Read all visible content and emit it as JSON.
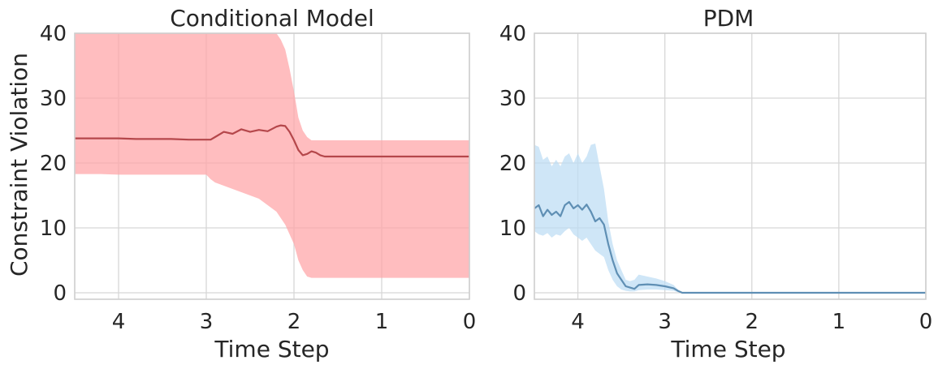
{
  "chart_data": [
    {
      "type": "line",
      "title": "Conditional Model",
      "xlabel": "Time Step",
      "ylabel": "Constraint Violation",
      "xlim": [
        4.5,
        0
      ],
      "ylim": [
        -1,
        40
      ],
      "xticks": [
        4,
        3,
        2,
        1,
        0
      ],
      "yticks": [
        0,
        10,
        20,
        30,
        40
      ],
      "grid": true,
      "line_color": "#b5474b",
      "band_color": "#ffa3a6",
      "series": [
        {
          "x": [
            4.5,
            4.2,
            4.0,
            3.8,
            3.6,
            3.4,
            3.2,
            3.0,
            2.95,
            2.9,
            2.8,
            2.7,
            2.6,
            2.5,
            2.4,
            2.3,
            2.2,
            2.15,
            2.1,
            2.05,
            2.0,
            1.95,
            1.9,
            1.85,
            1.8,
            1.75,
            1.7,
            1.65,
            1.6,
            1.5,
            1.2,
            1.0,
            0.8,
            0.5,
            0.2,
            0.0
          ],
          "y": [
            23.8,
            23.8,
            23.8,
            23.7,
            23.7,
            23.7,
            23.6,
            23.6,
            23.6,
            24.0,
            24.8,
            24.5,
            25.2,
            24.8,
            25.1,
            24.9,
            25.6,
            25.8,
            25.7,
            24.8,
            23.5,
            22.0,
            21.2,
            21.4,
            21.8,
            21.6,
            21.2,
            21.0,
            21.0,
            21.0,
            21.0,
            21.0,
            21.0,
            21.0,
            21.0,
            21.0
          ],
          "lower": [
            18.3,
            18.3,
            18.2,
            18.2,
            18.2,
            18.2,
            18.2,
            18.2,
            17.5,
            17.0,
            16.5,
            16.0,
            15.5,
            15.0,
            14.5,
            13.5,
            12.5,
            11.5,
            10.5,
            9.0,
            7.5,
            5.0,
            3.5,
            2.5,
            2.3,
            2.3,
            2.3,
            2.3,
            2.3,
            2.3,
            2.3,
            2.3,
            2.3,
            2.3,
            2.3,
            2.3
          ],
          "upper": [
            40,
            40,
            40,
            40,
            40,
            40,
            40,
            40,
            40,
            40,
            40,
            40,
            40,
            40,
            40,
            40,
            40,
            39.0,
            37.5,
            34.5,
            31.0,
            27.0,
            25.0,
            24.0,
            23.5,
            23.5,
            23.5,
            23.5,
            23.5,
            23.5,
            23.5,
            23.5,
            23.5,
            23.5,
            23.5,
            23.5
          ]
        }
      ]
    },
    {
      "type": "line",
      "title": "PDM",
      "xlabel": "Time Step",
      "ylabel": "",
      "xlim": [
        4.5,
        0
      ],
      "ylim": [
        -1,
        40
      ],
      "xticks": [
        4,
        3,
        2,
        1,
        0
      ],
      "yticks": [
        0,
        10,
        20,
        30,
        40
      ],
      "grid": true,
      "line_color": "#5f8fb4",
      "band_color": "#bcdcf4",
      "series": [
        {
          "x": [
            4.5,
            4.45,
            4.4,
            4.35,
            4.3,
            4.25,
            4.2,
            4.15,
            4.1,
            4.05,
            4.0,
            3.95,
            3.9,
            3.85,
            3.8,
            3.75,
            3.7,
            3.65,
            3.6,
            3.55,
            3.5,
            3.45,
            3.4,
            3.35,
            3.3,
            3.2,
            3.1,
            3.0,
            2.9,
            2.85,
            2.8,
            2.5,
            2.0,
            1.5,
            1.0,
            0.5,
            0.0
          ],
          "y": [
            13.0,
            13.5,
            11.8,
            12.8,
            12.0,
            12.5,
            11.8,
            13.5,
            14.0,
            13.0,
            13.5,
            12.8,
            13.6,
            12.5,
            11.0,
            11.5,
            10.5,
            7.5,
            5.0,
            3.0,
            2.0,
            1.0,
            0.8,
            0.6,
            1.2,
            1.3,
            1.2,
            1.0,
            0.7,
            0.3,
            0.0,
            0.0,
            0.0,
            0.0,
            0.0,
            0.0,
            0.0
          ],
          "lower": [
            9.5,
            9.0,
            8.8,
            9.2,
            8.5,
            9.0,
            8.8,
            9.5,
            10.0,
            9.0,
            8.5,
            8.0,
            8.5,
            7.5,
            6.5,
            6.0,
            5.5,
            3.5,
            2.0,
            1.0,
            0.5,
            0.3,
            0.2,
            0.2,
            0.4,
            0.5,
            0.5,
            0.4,
            0.3,
            0.1,
            0.0,
            0.0,
            0.0,
            0.0,
            0.0,
            0.0,
            0.0
          ],
          "upper": [
            22.8,
            22.5,
            20.5,
            21.0,
            19.5,
            20.5,
            19.5,
            21.0,
            21.5,
            20.0,
            21.5,
            20.0,
            21.0,
            22.8,
            23.0,
            19.5,
            16.0,
            11.0,
            7.5,
            5.0,
            3.5,
            2.0,
            1.8,
            2.0,
            2.8,
            2.5,
            2.2,
            1.8,
            1.2,
            0.5,
            0.0,
            0.0,
            0.0,
            0.0,
            0.0,
            0.0,
            0.0
          ]
        }
      ]
    }
  ]
}
